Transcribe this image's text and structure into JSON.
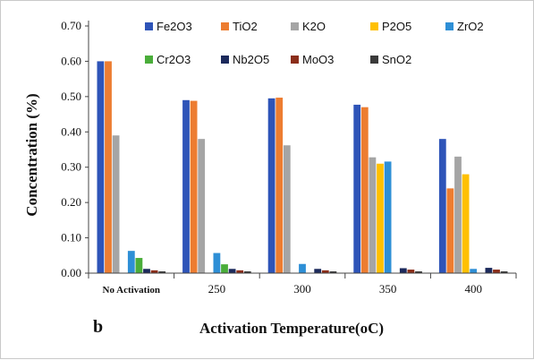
{
  "chart_data": {
    "type": "bar",
    "panel_label": "b",
    "xlabel": "Activation Temperature(oC)",
    "ylabel": "Concentration (%)",
    "ylim": [
      0,
      0.7
    ],
    "yticks": [
      "0.00",
      "0.10",
      "0.20",
      "0.30",
      "0.40",
      "0.50",
      "0.60",
      "0.70"
    ],
    "categories": [
      "No Activation",
      "250",
      "300",
      "350",
      "400"
    ],
    "legend_position": "top",
    "grid": false,
    "series": [
      {
        "name": "Fe2O3",
        "color": "#2e54b8",
        "values": [
          0.6,
          0.49,
          0.495,
          0.477,
          0.38
        ]
      },
      {
        "name": "TiO2",
        "color": "#ed7d31",
        "values": [
          0.6,
          0.488,
          0.497,
          0.47,
          0.24
        ]
      },
      {
        "name": "K2O",
        "color": "#a5a5a5",
        "values": [
          0.39,
          0.38,
          0.362,
          0.328,
          0.33
        ]
      },
      {
        "name": "P2O5",
        "color": "#ffc000",
        "values": [
          0,
          0,
          0,
          0.31,
          0.28
        ]
      },
      {
        "name": "ZrO2",
        "color": "#2e8fd6",
        "values": [
          0.063,
          0.057,
          0.026,
          0.316,
          0.012
        ]
      },
      {
        "name": "Cr2O3",
        "color": "#4aad3a",
        "values": [
          0.043,
          0.025,
          0,
          0,
          0
        ]
      },
      {
        "name": "Nb2O5",
        "color": "#1c2a5c",
        "values": [
          0.012,
          0.012,
          0.012,
          0.014,
          0.015
        ]
      },
      {
        "name": "MoO3",
        "color": "#8b2e1a",
        "values": [
          0.008,
          0.008,
          0.008,
          0.01,
          0.01
        ]
      },
      {
        "name": "SnO2",
        "color": "#3a3a3a",
        "values": [
          0.005,
          0.005,
          0.005,
          0.005,
          0.005
        ]
      }
    ]
  }
}
